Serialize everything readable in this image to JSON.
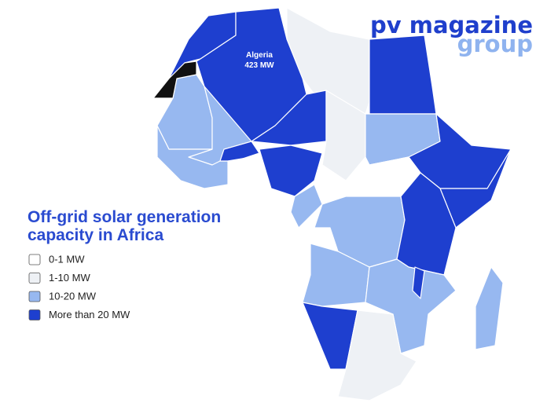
{
  "logo": {
    "line1": "pv magazine",
    "line2": "group"
  },
  "annotation": {
    "country": "Algeria",
    "value": "423 MW"
  },
  "title": [
    "Off-grid solar generation",
    "capacity in Africa"
  ],
  "legend": [
    {
      "label": "0-1 MW",
      "color": "#ffffff"
    },
    {
      "label": "1-10 MW",
      "color": "#eef1f5"
    },
    {
      "label": "10-20 MW",
      "color": "#97b8f0"
    },
    {
      "label": "More than 20 MW",
      "color": "#1e3fcf"
    }
  ]
}
